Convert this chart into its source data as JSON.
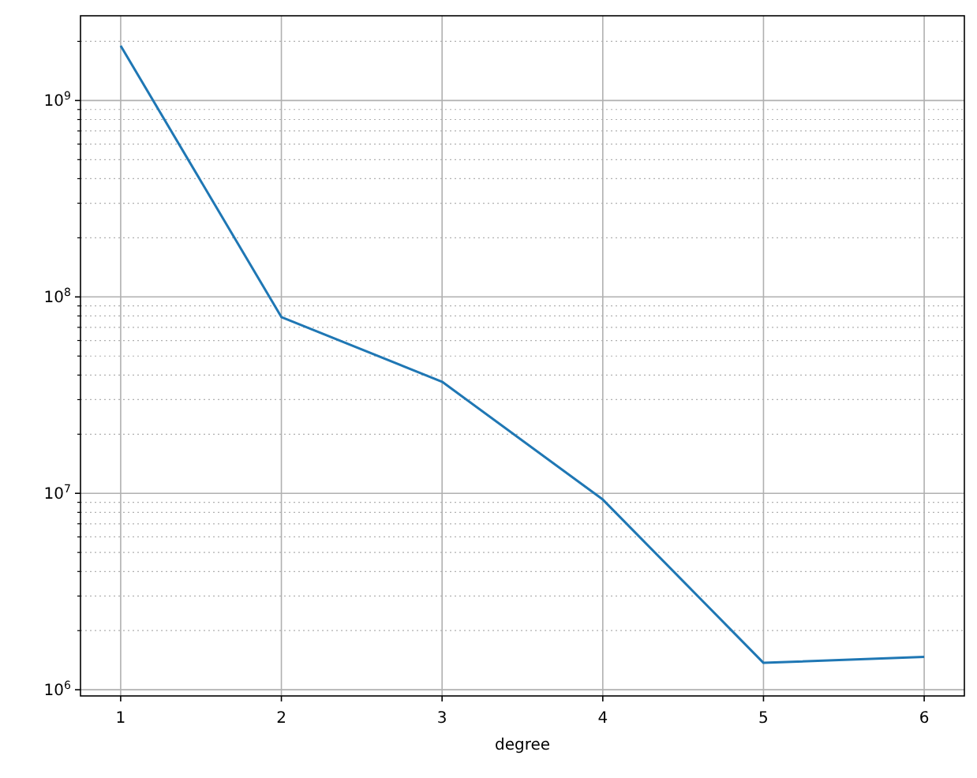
{
  "chart_data": {
    "type": "line",
    "xlabel": "degree",
    "x": [
      1,
      2,
      3,
      4,
      5,
      6
    ],
    "series": [
      {
        "color": "#1f77b4",
        "values": [
          1900000000.0,
          79000000.0,
          37000000.0,
          9300000.0,
          1370000.0,
          1470000.0
        ]
      }
    ],
    "xlim": [
      0.75,
      6.25
    ],
    "xticks": [
      1,
      2,
      3,
      4,
      5,
      6
    ],
    "ylim": [
      930000.0,
      2700000000.0
    ],
    "yticks": [
      {
        "value": 1000000.0,
        "label": "10$^{6}$"
      },
      {
        "value": 2000000.0,
        "label": null
      },
      {
        "value": 3000000.0,
        "label": null
      },
      {
        "value": 4000000.0,
        "label": null
      },
      {
        "value": 5000000.0,
        "label": null
      },
      {
        "value": 6000000.0,
        "label": null
      },
      {
        "value": 7000000.0,
        "label": null
      },
      {
        "value": 8000000.0,
        "label": null
      },
      {
        "value": 9000000.0,
        "label": null
      },
      {
        "value": 10000000.0,
        "label": "10$^{7}$"
      },
      {
        "value": 20000000.0,
        "label": null
      },
      {
        "value": 30000000.0,
        "label": null
      },
      {
        "value": 40000000.0,
        "label": null
      },
      {
        "value": 50000000.0,
        "label": null
      },
      {
        "value": 60000000.0,
        "label": null
      },
      {
        "value": 70000000.0,
        "label": null
      },
      {
        "value": 80000000.0,
        "label": null
      },
      {
        "value": 90000000.0,
        "label": null
      },
      {
        "value": 100000000.0,
        "label": "10$^{8}$"
      },
      {
        "value": 200000000.0,
        "label": null
      },
      {
        "value": 300000000.0,
        "label": null
      },
      {
        "value": 400000000.0,
        "label": null
      },
      {
        "value": 500000000.0,
        "label": null
      },
      {
        "value": 600000000.0,
        "label": null
      },
      {
        "value": 700000000.0,
        "label": null
      },
      {
        "value": 800000000.0,
        "label": null
      },
      {
        "value": 900000000.0,
        "label": null
      },
      {
        "value": 1000000000.0,
        "label": "10$^{9}$"
      },
      {
        "value": 2000000000.0,
        "label": null
      }
    ],
    "log": "y",
    "grid": true,
    "marker": "none",
    "line_style": "solid"
  }
}
